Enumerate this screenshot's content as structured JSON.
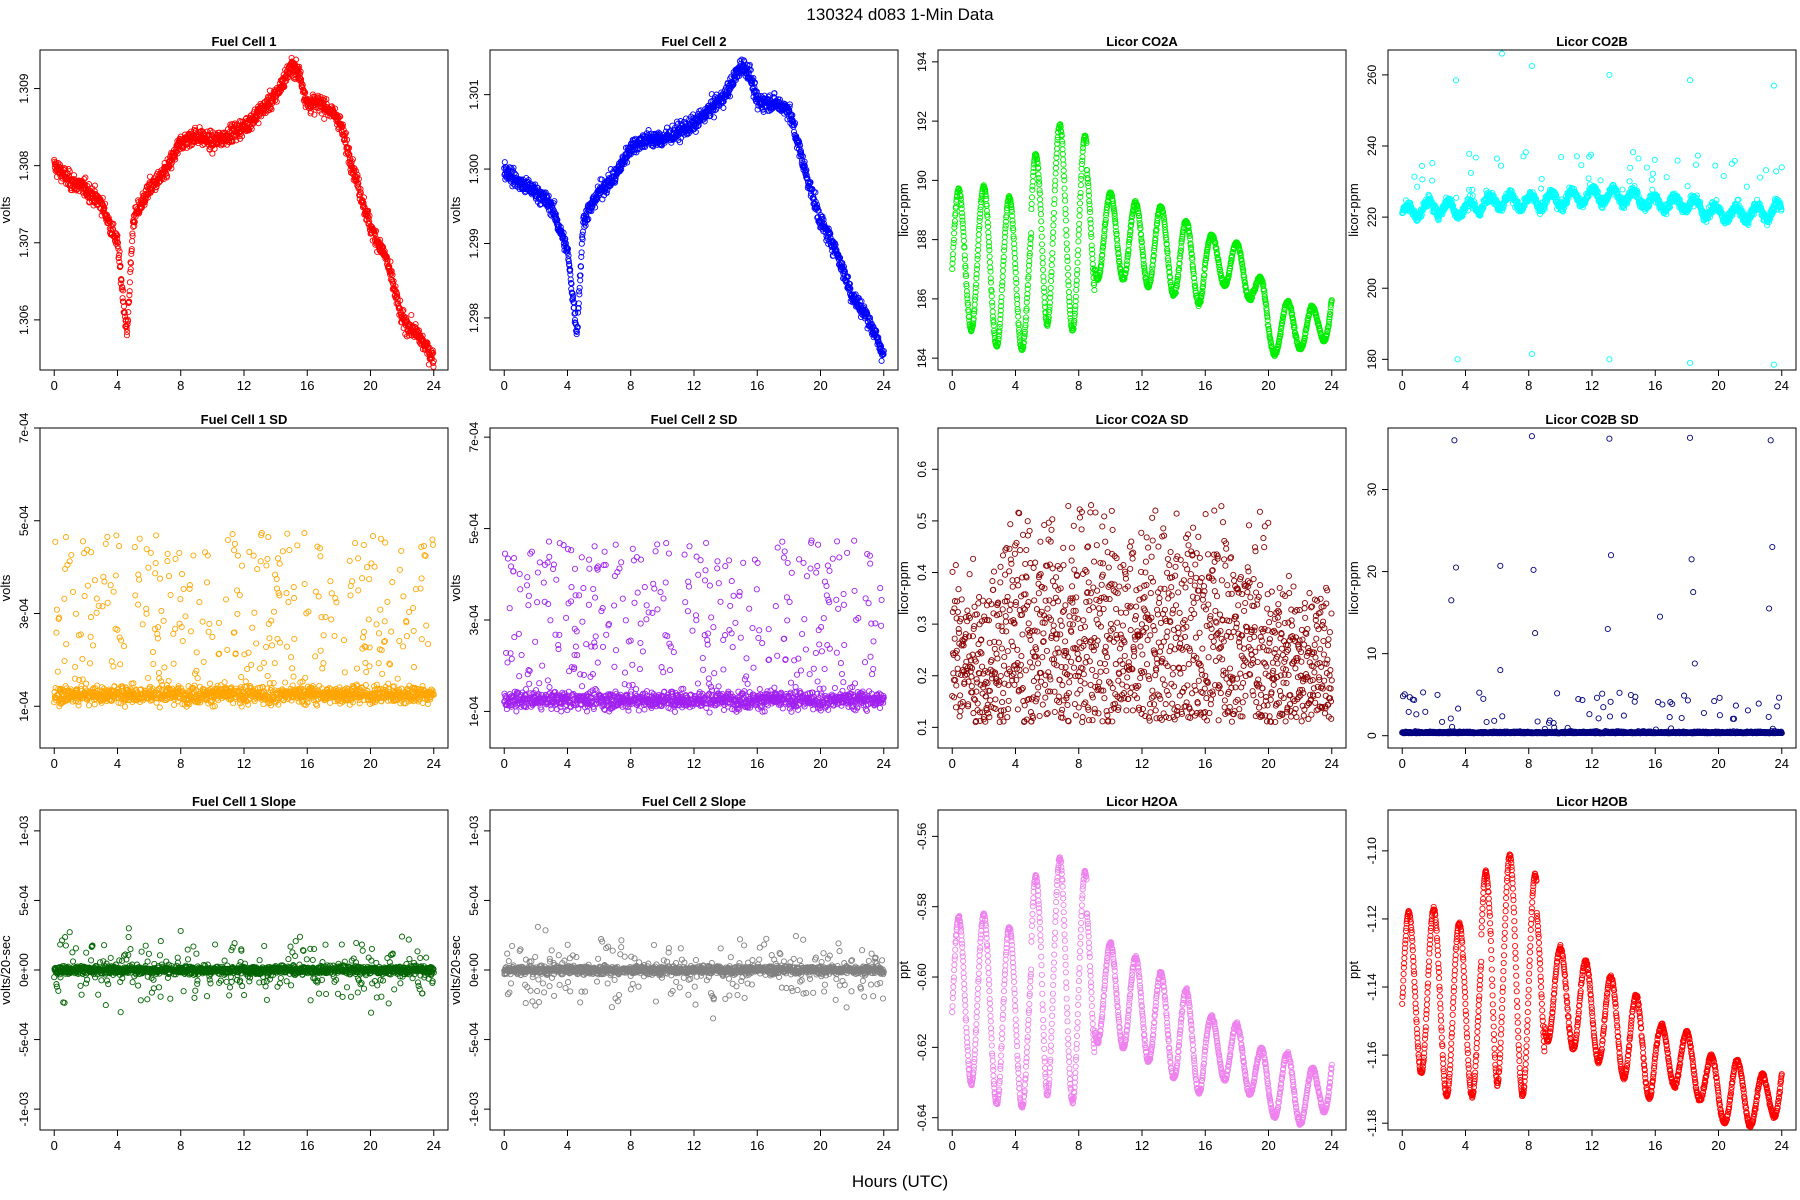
{
  "figure": {
    "title": "130324    d083    1-Min Data",
    "xlabel": "Hours (UTC)"
  },
  "chart_data": [
    {
      "type": "scatter",
      "title": "Fuel Cell 1",
      "ylabel": "volts",
      "color": "#ff0000",
      "xlim": [
        -0.9,
        24.9
      ],
      "ylim": [
        1.30535,
        1.3095
      ],
      "yticks": [
        1.306,
        1.307,
        1.308,
        1.309
      ],
      "yticklabels": [
        "1.306",
        "1.307",
        "1.308",
        "1.309"
      ],
      "xticks": [
        0,
        4,
        8,
        12,
        16,
        20,
        24
      ],
      "gen": "level",
      "series": [
        {
          "x": [
            0,
            1,
            2,
            3,
            4,
            4.6,
            5,
            6,
            7,
            8,
            9,
            10,
            11,
            12,
            13,
            14,
            15,
            15.5,
            16,
            17,
            18,
            19,
            20,
            21,
            22,
            23,
            24
          ],
          "y": [
            1.308,
            1.3078,
            1.3077,
            1.3075,
            1.307,
            1.3058,
            1.3073,
            1.3077,
            1.3079,
            1.3083,
            1.3084,
            1.3083,
            1.3084,
            1.3085,
            1.3087,
            1.3089,
            1.3093,
            1.3092,
            1.3088,
            1.3088,
            1.3086,
            1.3079,
            1.3072,
            1.3068,
            1.306,
            1.3058,
            1.3055
          ]
        }
      ],
      "noise": 0.00012
    },
    {
      "type": "scatter",
      "title": "Fuel Cell 2",
      "ylabel": "volts",
      "color": "#0000ff",
      "xlim": [
        -0.9,
        24.9
      ],
      "ylim": [
        1.2973,
        1.3016
      ],
      "yticks": [
        1.298,
        1.299,
        1.3,
        1.301
      ],
      "yticklabels": [
        "1.298",
        "1.299",
        "1.300",
        "1.301"
      ],
      "xticks": [
        0,
        4,
        8,
        12,
        16,
        20,
        24
      ],
      "gen": "level",
      "series": [
        {
          "x": [
            0,
            1,
            2,
            3,
            4,
            4.6,
            5,
            6,
            7,
            8,
            9,
            10,
            11,
            12,
            13,
            14,
            15,
            15.5,
            16,
            17,
            18,
            19,
            20,
            21,
            22,
            23,
            24
          ],
          "y": [
            1.3,
            1.2998,
            1.2997,
            1.2995,
            1.2989,
            1.2978,
            1.2993,
            1.2997,
            1.2999,
            1.3003,
            1.3004,
            1.3004,
            1.3005,
            1.3006,
            1.3008,
            1.301,
            1.3014,
            1.3013,
            1.3009,
            1.3009,
            1.3008,
            1.3,
            1.2993,
            1.2989,
            1.2983,
            1.298,
            1.2975
          ]
        }
      ],
      "noise": 0.00012
    },
    {
      "type": "scatter",
      "title": "Licor CO2A",
      "ylabel": "licor-ppm",
      "color": "#00ee00",
      "xlim": [
        -0.9,
        24.9
      ],
      "ylim": [
        183.6,
        194.4
      ],
      "yticks": [
        184,
        186,
        188,
        190,
        192,
        194
      ],
      "yticklabels": [
        "184",
        "186",
        "188",
        "190",
        "192",
        "194"
      ],
      "xticks": [
        0,
        4,
        8,
        12,
        16,
        20,
        24
      ],
      "gen": "wave",
      "series": [
        {
          "x": [
            0,
            1,
            2,
            3,
            4,
            5,
            5.6,
            6,
            7,
            8,
            9,
            10,
            11,
            12,
            13,
            14,
            15,
            16,
            17,
            18,
            19,
            20,
            21,
            22,
            23,
            24
          ],
          "y": [
            187,
            187.5,
            187.3,
            186.8,
            187,
            186.5,
            189,
            188.5,
            188.5,
            188.2,
            188,
            188.2,
            188,
            187.8,
            187.8,
            187.5,
            187.2,
            187.2,
            187.4,
            187,
            186.8,
            185,
            185,
            185.2,
            184.8,
            186
          ]
        }
      ],
      "amp": 2.5,
      "noise": 0.2
    },
    {
      "type": "scatter",
      "title": "Licor CO2B",
      "ylabel": "licor-ppm",
      "color": "#00ffff",
      "xlim": [
        -0.9,
        24.9
      ],
      "ylim": [
        177,
        267
      ],
      "yticks": [
        180,
        200,
        220,
        240,
        260
      ],
      "yticklabels": [
        "180",
        "200",
        "220",
        "240",
        "260"
      ],
      "xticks": [
        0,
        4,
        8,
        12,
        16,
        20,
        24
      ],
      "gen": "co2b",
      "series": [
        {
          "x": [
            0,
            2,
            4,
            6,
            8,
            10,
            12,
            14,
            16,
            18,
            20,
            22,
            24
          ],
          "y": [
            221,
            223,
            222,
            225,
            224,
            225,
            226,
            226,
            224,
            224,
            221,
            221,
            222
          ]
        }
      ],
      "outliers": [
        [
          3.4,
          258.5
        ],
        [
          3.5,
          180
        ],
        [
          8.2,
          262.5
        ],
        [
          8.2,
          181.5
        ],
        [
          13.1,
          260
        ],
        [
          13.1,
          180
        ],
        [
          18.2,
          258.5
        ],
        [
          18.2,
          179
        ],
        [
          23.5,
          257
        ],
        [
          23.5,
          178.5
        ],
        [
          6.3,
          266
        ]
      ],
      "noise": 1.5
    },
    {
      "type": "scatter",
      "title": "Fuel Cell 1 SD",
      "ylabel": "volts",
      "color": "#ffa500",
      "xlim": [
        -0.9,
        24.9
      ],
      "ylim": [
        1e-05,
        0.0007
      ],
      "yticks": [
        0.0001,
        0.0003,
        0.0005,
        0.0007
      ],
      "yticklabels": [
        "1e-04",
        "3e-04",
        "5e-04",
        "7e-04"
      ],
      "xticks": [
        0,
        4,
        8,
        12,
        16,
        20,
        24
      ],
      "gen": "sd",
      "series": [
        {
          "x": [
            0,
            24
          ],
          "y": [
            0.000125,
            0.000125
          ]
        }
      ],
      "noise": 2e-05
    },
    {
      "type": "scatter",
      "title": "Fuel Cell 2 SD",
      "ylabel": "volts",
      "color": "#a020f0",
      "xlim": [
        -0.9,
        24.9
      ],
      "ylim": [
        2e-05,
        0.00072
      ],
      "yticks": [
        0.0001,
        0.0003,
        0.0005,
        0.0007
      ],
      "yticklabels": [
        "1e-04",
        "3e-04",
        "5e-04",
        "7e-04"
      ],
      "xticks": [
        0,
        4,
        8,
        12,
        16,
        20,
        24
      ],
      "gen": "sd",
      "series": [
        {
          "x": [
            0,
            24
          ],
          "y": [
            0.000125,
            0.000125
          ]
        }
      ],
      "noise": 2e-05
    },
    {
      "type": "scatter",
      "title": "Licor CO2A SD",
      "ylabel": "licor-ppm",
      "color": "#8b0000",
      "xlim": [
        -0.9,
        24.9
      ],
      "ylim": [
        0.06,
        0.68
      ],
      "yticks": [
        0.1,
        0.2,
        0.3,
        0.4,
        0.5,
        0.6
      ],
      "yticklabels": [
        "0.1",
        "0.2",
        "0.3",
        "0.4",
        "0.5",
        "0.6"
      ],
      "xticks": [
        0,
        4,
        8,
        12,
        16,
        20,
        24
      ],
      "gen": "uniform",
      "series": [
        {
          "x": [
            0,
            24
          ],
          "y": [
            0.25,
            0.25
          ]
        }
      ],
      "noise": 0.1
    },
    {
      "type": "scatter",
      "title": "Licor CO2B SD",
      "ylabel": "licor-ppm",
      "color": "#000080",
      "xlim": [
        -0.9,
        24.9
      ],
      "ylim": [
        -1.5,
        37.5
      ],
      "yticks": [
        0,
        10,
        20,
        30
      ],
      "yticklabels": [
        "0",
        "10",
        "20",
        "30"
      ],
      "xticks": [
        0,
        4,
        8,
        12,
        16,
        20,
        24
      ],
      "gen": "sd2",
      "series": [
        {
          "x": [
            0,
            24
          ],
          "y": [
            0.3,
            0.3
          ]
        }
      ],
      "outliers": [
        [
          3.3,
          36
        ],
        [
          3.4,
          20.5
        ],
        [
          3.1,
          16.5
        ],
        [
          6.2,
          20.7
        ],
        [
          6.2,
          8
        ],
        [
          8.2,
          36.5
        ],
        [
          8.3,
          20.2
        ],
        [
          8.4,
          12.5
        ],
        [
          13.1,
          36.2
        ],
        [
          13.2,
          22
        ],
        [
          13,
          13
        ],
        [
          16.3,
          14.5
        ],
        [
          18.2,
          36.3
        ],
        [
          18.3,
          21.5
        ],
        [
          18.4,
          17.5
        ],
        [
          18.5,
          8.8
        ],
        [
          23.3,
          36
        ],
        [
          23.4,
          23
        ],
        [
          23.2,
          15.5
        ]
      ],
      "noise": 0.2
    },
    {
      "type": "scatter",
      "title": "Fuel Cell 1 Slope",
      "ylabel": "volts/20-sec",
      "color": "#006400",
      "xlim": [
        -0.9,
        24.9
      ],
      "ylim": [
        -0.00115,
        0.00115
      ],
      "yticks": [
        -0.001,
        -0.0005,
        0,
        0.0005,
        0.001
      ],
      "yticklabels": [
        "-1e-03",
        "-5e-04",
        "0e+00",
        "5e-04",
        "1e-03"
      ],
      "xticks": [
        0,
        4,
        8,
        12,
        16,
        20,
        24
      ],
      "gen": "slope",
      "series": [
        {
          "x": [
            0,
            24
          ],
          "y": [
            0,
            0
          ]
        }
      ],
      "noise": 3e-05
    },
    {
      "type": "scatter",
      "title": "Fuel Cell 2 Slope",
      "ylabel": "volts/20-sec",
      "color": "#808080",
      "xlim": [
        -0.9,
        24.9
      ],
      "ylim": [
        -0.00115,
        0.00115
      ],
      "yticks": [
        -0.001,
        -0.0005,
        0,
        0.0005,
        0.001
      ],
      "yticklabels": [
        "-1e-03",
        "-5e-04",
        "0e+00",
        "5e-04",
        "1e-03"
      ],
      "xticks": [
        0,
        4,
        8,
        12,
        16,
        20,
        24
      ],
      "gen": "slope",
      "series": [
        {
          "x": [
            0,
            24
          ],
          "y": [
            0,
            0
          ]
        }
      ],
      "noise": 3e-05
    },
    {
      "type": "scatter",
      "title": "Licor H2OA",
      "ylabel": "ppt",
      "color": "#ee82ee",
      "xlim": [
        -0.9,
        24.9
      ],
      "ylim": [
        -0.6435,
        -0.5525
      ],
      "yticks": [
        -0.64,
        -0.62,
        -0.6,
        -0.58,
        -0.56
      ],
      "yticklabels": [
        "-0.64",
        "-0.62",
        "-0.60",
        "-0.58",
        "-0.56"
      ],
      "xticks": [
        0,
        4,
        8,
        12,
        16,
        20,
        24
      ],
      "gen": "wave",
      "series": [
        {
          "x": [
            0,
            1,
            2,
            3,
            4,
            5,
            5.6,
            6,
            7,
            8,
            9,
            10,
            11,
            12,
            13,
            14,
            15,
            16,
            17,
            18,
            19,
            20,
            21,
            22,
            23,
            24
          ],
          "y": [
            -0.61,
            -0.605,
            -0.607,
            -0.612,
            -0.61,
            -0.615,
            -0.59,
            -0.6,
            -0.6,
            -0.603,
            -0.605,
            -0.604,
            -0.607,
            -0.609,
            -0.612,
            -0.615,
            -0.618,
            -0.62,
            -0.62,
            -0.622,
            -0.625,
            -0.632,
            -0.63,
            -0.633,
            -0.635,
            -0.625
          ]
        }
      ],
      "amp": 0.025,
      "noise": 0.002
    },
    {
      "type": "scatter",
      "title": "Licor H2OB",
      "ylabel": "ppt",
      "color": "#ff0000",
      "xlim": [
        -0.9,
        24.9
      ],
      "ylim": [
        -1.182,
        -1.088
      ],
      "yticks": [
        -1.18,
        -1.16,
        -1.14,
        -1.12,
        -1.1
      ],
      "yticklabels": [
        "-1.18",
        "-1.16",
        "-1.14",
        "-1.12",
        "-1.10"
      ],
      "xticks": [
        0,
        4,
        8,
        12,
        16,
        20,
        24
      ],
      "gen": "wave",
      "series": [
        {
          "x": [
            0,
            1,
            2,
            3,
            4,
            5,
            5.6,
            6,
            7,
            8,
            9,
            10,
            11,
            12,
            13,
            14,
            15,
            16,
            17,
            18,
            19,
            20,
            21,
            22,
            23,
            24
          ],
          "y": [
            -1.145,
            -1.14,
            -1.142,
            -1.148,
            -1.145,
            -1.15,
            -1.125,
            -1.135,
            -1.135,
            -1.14,
            -1.142,
            -1.142,
            -1.145,
            -1.147,
            -1.15,
            -1.153,
            -1.157,
            -1.16,
            -1.16,
            -1.162,
            -1.165,
            -1.172,
            -1.17,
            -1.172,
            -1.175,
            -1.165
          ]
        }
      ],
      "amp": 0.025,
      "noise": 0.002
    }
  ]
}
